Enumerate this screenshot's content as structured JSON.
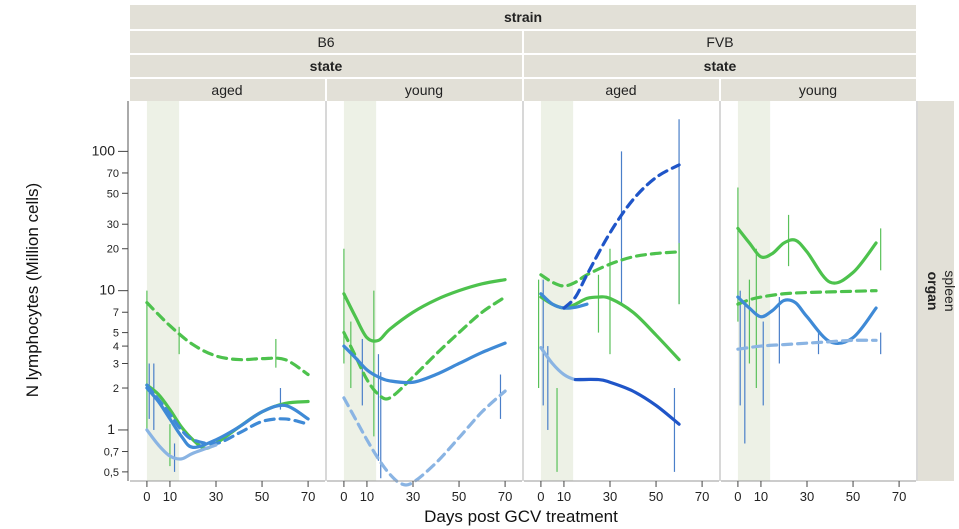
{
  "chart_data": {
    "type": "line",
    "title": "",
    "xlabel": "Days post GCV treatment",
    "ylabel": "N lymphocytes (Million cells)",
    "y_scale": "log",
    "ylim": [
      0.43,
      230
    ],
    "xlim": [
      -3,
      73
    ],
    "x_ticks": [
      0,
      10,
      30,
      50,
      70
    ],
    "y_ticks": [
      {
        "value": 100,
        "label": "100"
      },
      {
        "value": 70,
        "label": "70"
      },
      {
        "value": 50,
        "label": "50"
      },
      {
        "value": 30,
        "label": "30"
      },
      {
        "value": 20,
        "label": "20"
      },
      {
        "value": 10,
        "label": "10"
      },
      {
        "value": 7,
        "label": "7"
      },
      {
        "value": 5,
        "label": "5"
      },
      {
        "value": 4,
        "label": "4"
      },
      {
        "value": 3,
        "label": "3"
      },
      {
        "value": 2,
        "label": "2"
      },
      {
        "value": 1,
        "label": "1"
      },
      {
        "value": 0.7,
        "label": "0,7"
      },
      {
        "value": 0.5,
        "label": "0,5"
      }
    ],
    "strip": {
      "top_title": "strain",
      "strain_levels": [
        "B6",
        "FVB"
      ],
      "state_title": "state",
      "state_levels": [
        "aged",
        "young"
      ],
      "right_title": "organ",
      "right_level": "spleen"
    },
    "shaded_x": [
      0,
      14
    ],
    "colors": {
      "green": "#4dc24d",
      "blue": "#3f8ad6",
      "darkblue": "#1f55c8",
      "lightblue": "#8ab4e3",
      "errorbar_green": "#59c159",
      "errorbar_blue": "#4a7fc9"
    },
    "panels": [
      {
        "strain": "B6",
        "state": "aged",
        "series": [
          {
            "color": "green",
            "dash": false,
            "x": [
              0,
              5,
              10,
              15,
              20,
              25,
              30,
              40,
              50,
              60,
              70
            ],
            "y": [
              2.1,
              1.8,
              1.4,
              1.05,
              0.85,
              0.74,
              0.8,
              1.05,
              1.35,
              1.55,
              1.6
            ]
          },
          {
            "color": "green",
            "dash": true,
            "x": [
              0,
              10,
              20,
              30,
              40,
              50,
              60,
              70
            ],
            "y": [
              8.2,
              5.6,
              4.1,
              3.4,
              3.2,
              3.25,
              3.2,
              2.5
            ]
          },
          {
            "color": "blue",
            "dash": false,
            "x": [
              0,
              5,
              10,
              15,
              20,
              30,
              40,
              50,
              60,
              70
            ],
            "y": [
              2.0,
              1.6,
              1.2,
              0.9,
              0.75,
              0.85,
              1.05,
              1.35,
              1.5,
              1.2
            ]
          },
          {
            "color": "blue",
            "dash": true,
            "x": [
              0,
              10,
              15,
              20,
              30,
              40,
              50,
              60,
              70
            ],
            "y": [
              2.1,
              1.3,
              1.0,
              0.85,
              0.8,
              0.95,
              1.15,
              1.2,
              1.1
            ]
          },
          {
            "color": "lightblue",
            "dash": false,
            "x": [
              0,
              5,
              10,
              15,
              20,
              30
            ],
            "y": [
              1.0,
              0.78,
              0.65,
              0.62,
              0.68,
              0.78
            ]
          }
        ],
        "errorbars": [
          {
            "x": 0,
            "lo": 1.0,
            "hi": 10.0,
            "color": "errorbar_green"
          },
          {
            "x": 1,
            "lo": 1.2,
            "hi": 3.0,
            "color": "errorbar_blue"
          },
          {
            "x": 3,
            "lo": 1.0,
            "hi": 3.0,
            "color": "errorbar_blue"
          },
          {
            "x": 10,
            "lo": 0.55,
            "hi": 1.1,
            "color": "errorbar_green"
          },
          {
            "x": 12,
            "lo": 0.5,
            "hi": 0.8,
            "color": "errorbar_blue"
          },
          {
            "x": 14,
            "lo": 3.5,
            "hi": 5.5,
            "color": "errorbar_green"
          },
          {
            "x": 56,
            "lo": 2.8,
            "hi": 4.5,
            "color": "errorbar_green"
          },
          {
            "x": 58,
            "lo": 1.4,
            "hi": 2.0,
            "color": "errorbar_blue"
          }
        ]
      },
      {
        "strain": "B6",
        "state": "young",
        "series": [
          {
            "color": "green",
            "dash": false,
            "x": [
              0,
              5,
              10,
              15,
              20,
              30,
              40,
              50,
              60,
              70
            ],
            "y": [
              9.5,
              6.5,
              4.6,
              4.4,
              5.3,
              7.0,
              8.6,
              10.0,
              11.2,
              12.0
            ]
          },
          {
            "color": "green",
            "dash": true,
            "x": [
              0,
              5,
              10,
              15,
              20,
              30,
              40,
              50,
              60,
              70
            ],
            "y": [
              5.0,
              3.4,
              2.3,
              1.8,
              1.7,
              2.4,
              3.5,
              5.0,
              7.0,
              9.0
            ]
          },
          {
            "color": "blue",
            "dash": false,
            "x": [
              0,
              5,
              10,
              15,
              20,
              30,
              40,
              50,
              60,
              70
            ],
            "y": [
              4.0,
              3.3,
              2.7,
              2.4,
              2.25,
              2.2,
              2.5,
              3.0,
              3.6,
              4.2
            ]
          },
          {
            "color": "lightblue",
            "dash": true,
            "x": [
              0,
              5,
              10,
              15,
              20,
              25,
              30,
              40,
              50,
              60,
              70
            ],
            "y": [
              1.7,
              1.2,
              0.85,
              0.62,
              0.48,
              0.41,
              0.42,
              0.58,
              0.88,
              1.35,
              1.9
            ]
          }
        ],
        "errorbars": [
          {
            "x": 0,
            "lo": 3.0,
            "hi": 20.0,
            "color": "errorbar_green"
          },
          {
            "x": 3,
            "lo": 2.0,
            "hi": 6.0,
            "color": "errorbar_green"
          },
          {
            "x": 8,
            "lo": 1.5,
            "hi": 4.5,
            "color": "errorbar_blue"
          },
          {
            "x": 13,
            "lo": 0.9,
            "hi": 10.0,
            "color": "errorbar_green"
          },
          {
            "x": 15,
            "lo": 0.6,
            "hi": 3.5,
            "color": "errorbar_blue"
          },
          {
            "x": 16,
            "lo": 0.45,
            "hi": 2.6,
            "color": "errorbar_blue"
          },
          {
            "x": 68,
            "lo": 1.2,
            "hi": 2.5,
            "color": "errorbar_blue"
          }
        ]
      },
      {
        "strain": "FVB",
        "state": "aged",
        "series": [
          {
            "color": "green",
            "dash": false,
            "x": [
              0,
              5,
              10,
              15,
              20,
              25,
              30,
              40,
              50,
              60
            ],
            "y": [
              9.0,
              8.0,
              7.5,
              8.0,
              8.8,
              9.0,
              8.8,
              7.0,
              4.8,
              3.2
            ]
          },
          {
            "color": "green",
            "dash": true,
            "x": [
              0,
              5,
              10,
              15,
              20,
              30,
              40,
              50,
              60
            ],
            "y": [
              13.0,
              11.5,
              10.8,
              11.5,
              13.0,
              15.5,
              17.5,
              18.5,
              19.0
            ]
          },
          {
            "color": "blue",
            "dash": false,
            "x": [
              0,
              5,
              10,
              15,
              20
            ],
            "y": [
              9.5,
              8.0,
              7.5,
              7.6,
              8.0
            ]
          },
          {
            "color": "darkblue",
            "dash": true,
            "x": [
              10,
              15,
              20,
              30,
              40,
              50,
              60
            ],
            "y": [
              7.5,
              9.0,
              13.0,
              26.0,
              45.0,
              65.0,
              80.0
            ]
          },
          {
            "color": "lightblue",
            "dash": false,
            "x": [
              0,
              5,
              10,
              15,
              20
            ],
            "y": [
              3.9,
              3.0,
              2.5,
              2.3,
              2.3
            ]
          },
          {
            "color": "darkblue",
            "dash": false,
            "x": [
              15,
              25,
              30,
              40,
              50,
              60
            ],
            "y": [
              2.3,
              2.3,
              2.2,
              1.9,
              1.5,
              1.1
            ]
          }
        ],
        "errorbars": [
          {
            "x": -1,
            "lo": 2.0,
            "hi": 12.0,
            "color": "errorbar_green"
          },
          {
            "x": 1,
            "lo": 1.5,
            "hi": 12.0,
            "color": "errorbar_blue"
          },
          {
            "x": 3,
            "lo": 1.0,
            "hi": 4.0,
            "color": "errorbar_blue"
          },
          {
            "x": 7,
            "lo": 0.5,
            "hi": 2.0,
            "color": "errorbar_green"
          },
          {
            "x": 25,
            "lo": 5.0,
            "hi": 13.0,
            "color": "errorbar_green"
          },
          {
            "x": 30,
            "lo": 3.5,
            "hi": 20.0,
            "color": "errorbar_green"
          },
          {
            "x": 35,
            "lo": 8.0,
            "hi": 100.0,
            "color": "errorbar_blue"
          },
          {
            "x": 58,
            "lo": 0.5,
            "hi": 2.0,
            "color": "errorbar_blue"
          },
          {
            "x": 60,
            "lo": 8.0,
            "hi": 170.0,
            "color": "errorbar_blue"
          },
          {
            "x": 60,
            "lo": 8.0,
            "hi": 22.0,
            "color": "errorbar_green"
          }
        ]
      },
      {
        "strain": "FVB",
        "state": "young",
        "series": [
          {
            "color": "green",
            "dash": false,
            "x": [
              0,
              5,
              10,
              15,
              20,
              25,
              30,
              40,
              50,
              60
            ],
            "y": [
              28.0,
              22.0,
              17.5,
              18.5,
              22.0,
              23.0,
              19.0,
              11.5,
              13.5,
              22.0
            ]
          },
          {
            "color": "green",
            "dash": true,
            "x": [
              0,
              5,
              10,
              20,
              30,
              40,
              50,
              60
            ],
            "y": [
              8.0,
              8.6,
              9.0,
              9.5,
              9.7,
              9.8,
              9.9,
              10.0
            ]
          },
          {
            "color": "blue",
            "dash": false,
            "x": [
              0,
              5,
              10,
              15,
              20,
              25,
              30,
              40,
              50,
              60
            ],
            "y": [
              9.0,
              7.5,
              6.5,
              7.2,
              8.5,
              8.2,
              6.5,
              4.3,
              4.6,
              7.5
            ]
          },
          {
            "color": "lightblue",
            "dash": true,
            "x": [
              0,
              10,
              20,
              30,
              40,
              50,
              60
            ],
            "y": [
              3.8,
              4.0,
              4.1,
              4.2,
              4.3,
              4.4,
              4.4
            ]
          }
        ],
        "errorbars": [
          {
            "x": 0,
            "lo": 6.0,
            "hi": 55.0,
            "color": "errorbar_green"
          },
          {
            "x": 1,
            "lo": 1.5,
            "hi": 10.0,
            "color": "errorbar_blue"
          },
          {
            "x": 3,
            "lo": 0.8,
            "hi": 8.0,
            "color": "errorbar_blue"
          },
          {
            "x": 5,
            "lo": 3.0,
            "hi": 12.0,
            "color": "errorbar_green"
          },
          {
            "x": 8,
            "lo": 2.0,
            "hi": 20.0,
            "color": "errorbar_green"
          },
          {
            "x": 11,
            "lo": 1.5,
            "hi": 6.0,
            "color": "errorbar_blue"
          },
          {
            "x": 18,
            "lo": 3.0,
            "hi": 9.0,
            "color": "errorbar_blue"
          },
          {
            "x": 22,
            "lo": 15.0,
            "hi": 35.0,
            "color": "errorbar_green"
          },
          {
            "x": 35,
            "lo": 3.5,
            "hi": 5.0,
            "color": "errorbar_blue"
          },
          {
            "x": 62,
            "lo": 14.0,
            "hi": 28.0,
            "color": "errorbar_green"
          },
          {
            "x": 62,
            "lo": 3.5,
            "hi": 5.0,
            "color": "errorbar_blue"
          }
        ]
      }
    ]
  }
}
